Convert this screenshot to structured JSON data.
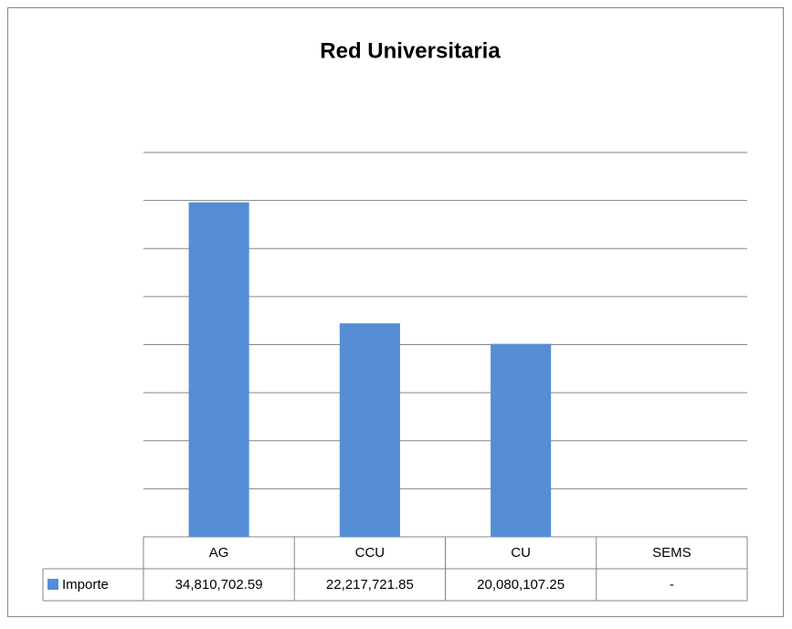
{
  "chart_data": {
    "type": "bar",
    "title": "Red Universitaria",
    "categories": [
      "AG",
      "CCU",
      "CU",
      "SEMS"
    ],
    "series": [
      {
        "name": "Importe",
        "color": "#558ed5",
        "values": [
          34810702.59,
          22217721.85,
          20080107.25,
          null
        ],
        "value_labels": [
          "34,810,702.59",
          "22,217,721.85",
          "20,080,107.25",
          "-"
        ]
      }
    ],
    "ylim": [
      0,
      40000000
    ],
    "yticks": [
      0,
      5000000,
      10000000,
      15000000,
      20000000,
      25000000,
      30000000,
      35000000,
      40000000
    ],
    "grid": true
  }
}
